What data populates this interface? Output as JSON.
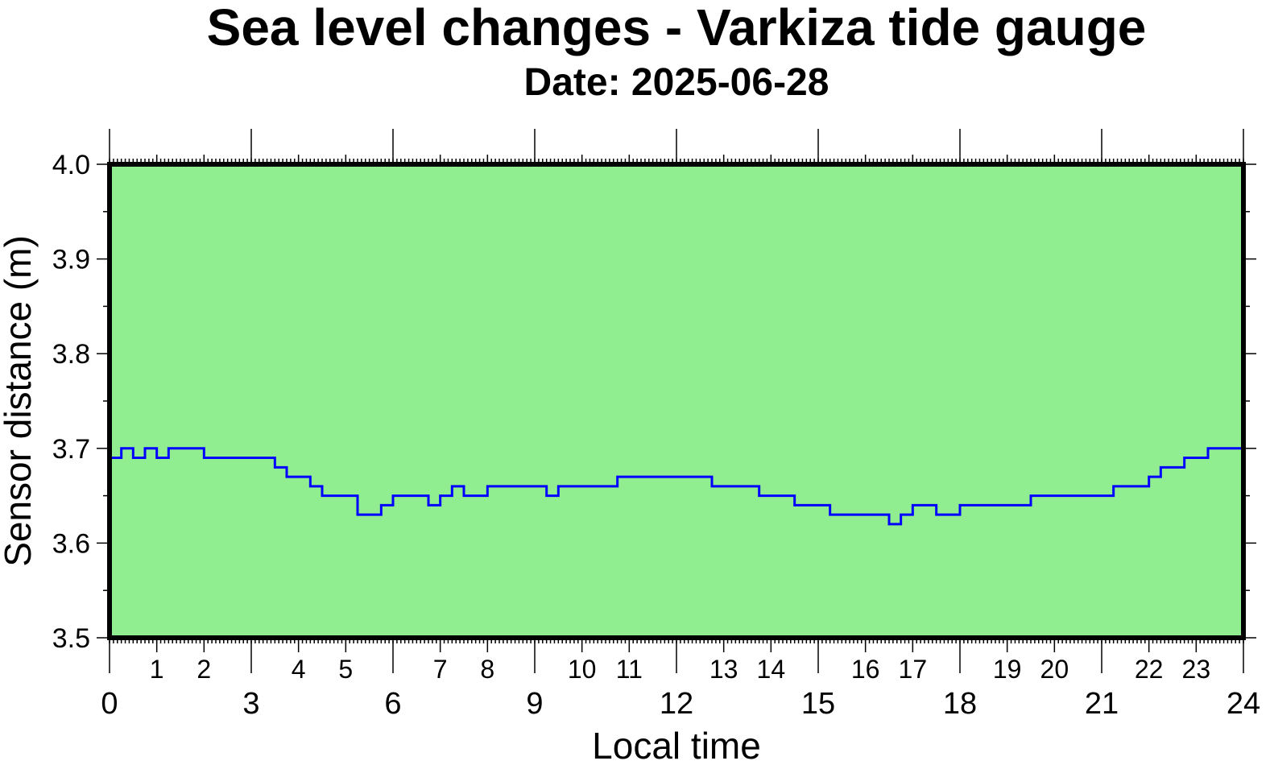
{
  "chart_data": {
    "type": "line",
    "title": "Sea level changes - Varkiza tide gauge",
    "subtitle": "Date: 2025-06-28",
    "xlabel": "Local time",
    "ylabel": "Sensor distance (m)",
    "xlim": [
      0,
      24
    ],
    "ylim": [
      3.5,
      4.0
    ],
    "grid": false,
    "x_major_ticks": [
      "0",
      "3",
      "6",
      "9",
      "12",
      "15",
      "18",
      "21",
      "24"
    ],
    "x_minor_ticks": [
      "1",
      "2",
      "4",
      "5",
      "7",
      "8",
      "10",
      "11",
      "13",
      "14",
      "16",
      "17",
      "19",
      "20",
      "22",
      "23"
    ],
    "y_ticks": [
      "3.5",
      "3.6",
      "3.7",
      "3.8",
      "3.9",
      "4.0"
    ],
    "colors": {
      "background": "#90ee90",
      "line": "#0000ff",
      "frame": "#000000"
    },
    "series": [
      {
        "x": [
          0.0,
          0.25,
          0.5,
          0.75,
          1.0,
          1.25,
          1.5,
          1.75,
          2.0,
          2.25,
          2.5,
          2.75,
          3.0,
          3.25,
          3.5,
          3.75,
          4.0,
          4.25,
          4.5,
          4.75,
          5.0,
          5.25,
          5.5,
          5.75,
          6.0,
          6.25,
          6.5,
          6.75,
          7.0,
          7.25,
          7.5,
          7.75,
          8.0,
          8.25,
          8.5,
          8.75,
          9.0,
          9.25,
          9.5,
          9.75,
          10.0,
          10.25,
          10.5,
          10.75,
          11.0,
          11.25,
          11.5,
          11.75,
          12.0,
          12.25,
          12.5,
          12.75,
          13.0,
          13.25,
          13.5,
          13.75,
          14.0,
          14.25,
          14.5,
          14.75,
          15.0,
          15.25,
          15.5,
          15.75,
          16.0,
          16.25,
          16.5,
          16.75,
          17.0,
          17.25,
          17.5,
          17.75,
          18.0,
          18.25,
          18.5,
          18.75,
          19.0,
          19.25,
          19.5,
          19.75,
          20.0,
          20.25,
          20.5,
          20.75,
          21.0,
          21.25,
          21.5,
          21.75,
          22.0,
          22.25,
          22.5,
          22.75,
          23.0,
          23.25,
          23.5,
          23.75,
          24.0
        ],
        "values": [
          3.69,
          3.7,
          3.69,
          3.7,
          3.69,
          3.7,
          3.7,
          3.7,
          3.69,
          3.69,
          3.69,
          3.69,
          3.69,
          3.69,
          3.68,
          3.67,
          3.67,
          3.66,
          3.65,
          3.65,
          3.65,
          3.63,
          3.63,
          3.64,
          3.65,
          3.65,
          3.65,
          3.64,
          3.65,
          3.66,
          3.65,
          3.65,
          3.66,
          3.66,
          3.66,
          3.66,
          3.66,
          3.65,
          3.66,
          3.66,
          3.66,
          3.66,
          3.66,
          3.67,
          3.67,
          3.67,
          3.67,
          3.67,
          3.67,
          3.67,
          3.67,
          3.66,
          3.66,
          3.66,
          3.66,
          3.65,
          3.65,
          3.65,
          3.64,
          3.64,
          3.64,
          3.63,
          3.63,
          3.63,
          3.63,
          3.63,
          3.62,
          3.63,
          3.64,
          3.64,
          3.63,
          3.63,
          3.64,
          3.64,
          3.64,
          3.64,
          3.64,
          3.64,
          3.65,
          3.65,
          3.65,
          3.65,
          3.65,
          3.65,
          3.65,
          3.66,
          3.66,
          3.66,
          3.67,
          3.68,
          3.68,
          3.69,
          3.69,
          3.7,
          3.7,
          3.7,
          3.69
        ]
      }
    ]
  }
}
